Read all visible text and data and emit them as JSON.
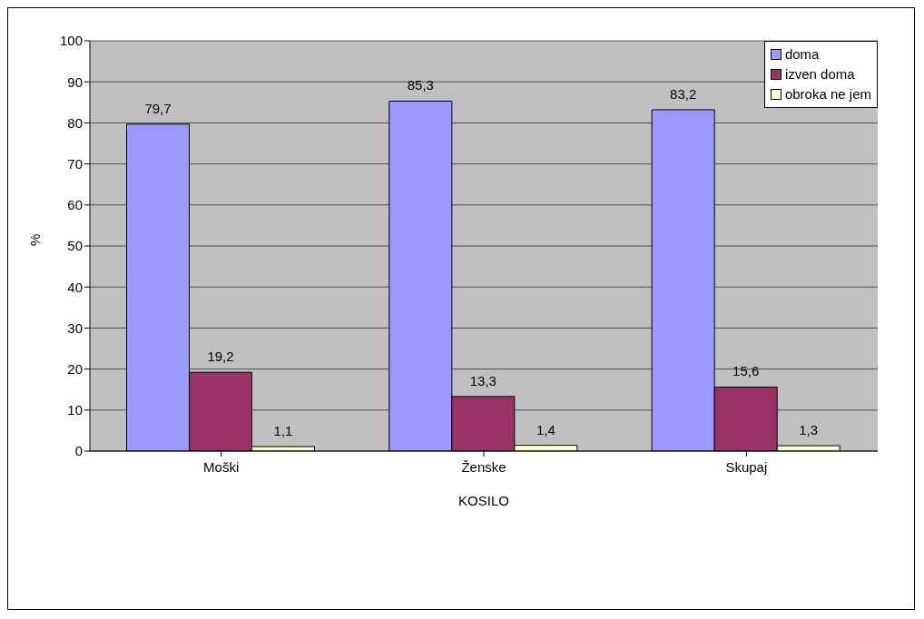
{
  "chart_data": {
    "type": "bar",
    "xlabel": "KOSILO",
    "ylabel": "%",
    "categories": [
      "Moški",
      "Ženske",
      "Skupaj"
    ],
    "series": [
      {
        "name": "doma",
        "color": "#9999ff",
        "values": [
          79.7,
          85.3,
          83.2
        ],
        "value_labels": [
          "79,7",
          "85,3",
          "83,2"
        ]
      },
      {
        "name": "izven doma",
        "color": "#993366",
        "values": [
          19.2,
          13.3,
          15.6
        ],
        "value_labels": [
          "19,2",
          "13,3",
          "15,6"
        ]
      },
      {
        "name": "obroka ne jem",
        "color": "#ffffcc",
        "values": [
          1.1,
          1.4,
          1.3
        ],
        "value_labels": [
          "1,1",
          "1,4",
          "1,3"
        ]
      }
    ],
    "ylim": [
      0,
      100
    ],
    "yticks": [
      0,
      10,
      20,
      30,
      40,
      50,
      60,
      70,
      80,
      90,
      100
    ],
    "grid": "y",
    "legend": "top right"
  }
}
